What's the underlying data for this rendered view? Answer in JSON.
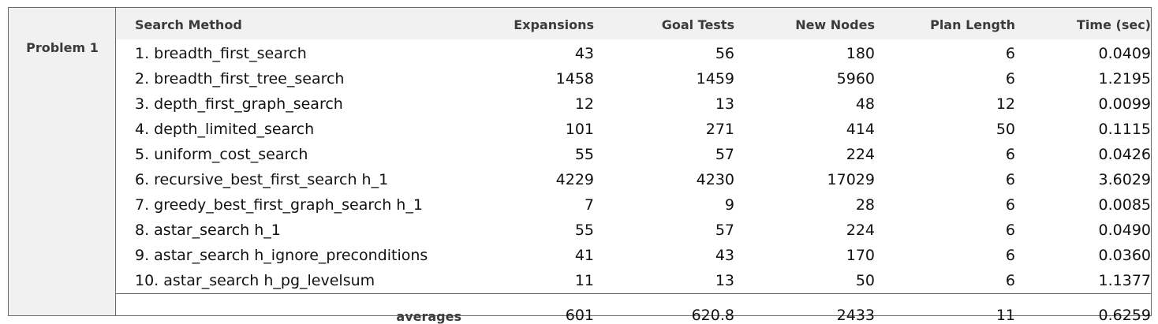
{
  "problem_label": "Problem 1",
  "columns": [
    "Search Method",
    "Expansions",
    "Goal Tests",
    "New Nodes",
    "Plan Length",
    "Time (sec)"
  ],
  "rows": [
    [
      "1. breadth_first_search",
      "43",
      "56",
      "180",
      "6",
      "0.0409"
    ],
    [
      "2. breadth_first_tree_search",
      "1458",
      "1459",
      "5960",
      "6",
      "1.2195"
    ],
    [
      "3. depth_first_graph_search",
      "12",
      "13",
      "48",
      "12",
      "0.0099"
    ],
    [
      "4. depth_limited_search",
      "101",
      "271",
      "414",
      "50",
      "0.1115"
    ],
    [
      "5. uniform_cost_search",
      "55",
      "57",
      "224",
      "6",
      "0.0426"
    ],
    [
      "6. recursive_best_first_search h_1",
      "4229",
      "4230",
      "17029",
      "6",
      "3.6029"
    ],
    [
      "7. greedy_best_first_graph_search h_1",
      "7",
      "9",
      "28",
      "6",
      "0.0085"
    ],
    [
      "8. astar_search h_1",
      "55",
      "57",
      "224",
      "6",
      "0.0490"
    ],
    [
      "9. astar_search h_ignore_preconditions",
      "41",
      "43",
      "170",
      "6",
      "0.0360"
    ],
    [
      "10. astar_search h_pg_levelsum",
      "11",
      "13",
      "50",
      "6",
      "1.1377"
    ]
  ],
  "averages": {
    "label": "averages",
    "expansions": "601",
    "goal_tests": "620.8",
    "new_nodes": "2433",
    "plan_length": "11",
    "time": "0.6259"
  }
}
